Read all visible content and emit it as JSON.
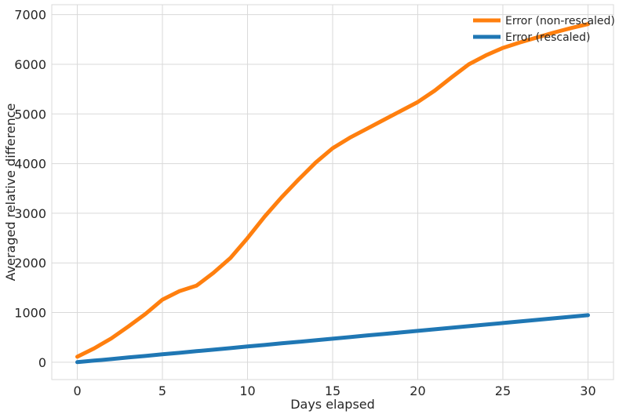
{
  "chart_data": {
    "type": "line",
    "title": "",
    "xlabel": "Days elapsed",
    "ylabel": "Averaged relative difference",
    "xlim": [
      -1.5,
      31.5
    ],
    "ylim": [
      -350,
      7200
    ],
    "xticks": [
      0,
      5,
      10,
      15,
      20,
      25,
      30
    ],
    "yticks": [
      0,
      1000,
      2000,
      3000,
      4000,
      5000,
      6000,
      7000
    ],
    "grid": true,
    "legend_position": "top-right",
    "x": [
      0,
      1,
      2,
      3,
      4,
      5,
      6,
      7,
      8,
      9,
      10,
      11,
      12,
      13,
      14,
      15,
      16,
      17,
      18,
      19,
      20,
      21,
      22,
      23,
      24,
      25,
      26,
      27,
      28,
      29,
      30
    ],
    "series": [
      {
        "name": "Error (non-rescaled)",
        "color": "#ff7f0e",
        "values": [
          110,
          280,
          480,
          720,
          970,
          1260,
          1430,
          1540,
          1800,
          2100,
          2500,
          2930,
          3320,
          3680,
          4020,
          4310,
          4520,
          4700,
          4880,
          5060,
          5240,
          5470,
          5740,
          6000,
          6180,
          6330,
          6440,
          6540,
          6640,
          6730,
          6810
        ]
      },
      {
        "name": "Error (rescaled)",
        "color": "#1f77b4",
        "values": [
          0,
          32,
          63,
          95,
          126,
          158,
          189,
          221,
          252,
          284,
          316,
          347,
          379,
          410,
          442,
          473,
          505,
          537,
          568,
          600,
          631,
          663,
          694,
          726,
          757,
          789,
          820,
          852,
          884,
          915,
          947
        ]
      }
    ]
  }
}
